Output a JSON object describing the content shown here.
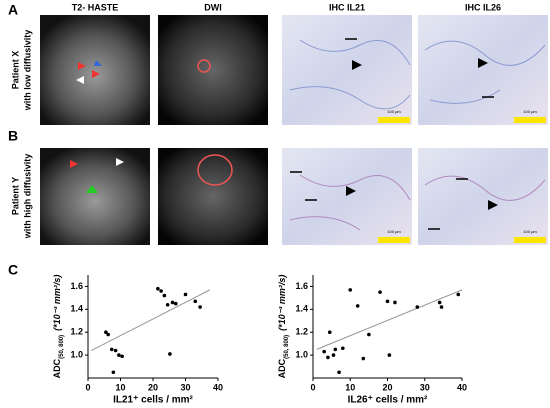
{
  "figure": {
    "panel_labels": [
      "A",
      "B",
      "C"
    ],
    "column_headers": [
      "T2- HASTE",
      "DWI",
      "IHC IL21",
      "IHC IL26"
    ],
    "row_labels": [
      [
        "Patient X",
        "with low diffusivity"
      ],
      [
        "Patient Y",
        "with high diffusivity"
      ]
    ],
    "scale_bar_labels": [
      "100 µm",
      "100 µm",
      "100 µm",
      "100 µm"
    ]
  },
  "chart_data": [
    {
      "type": "scatter",
      "xlabel": "IL21⁺ cells / mm²",
      "ylabel": "ADC",
      "ylabel_sub": "(50, 800)",
      "ylabel_unit": "(*10⁻³ mm²/s)",
      "x": [
        5.5,
        6.2,
        7.3,
        7.8,
        8.5,
        9.5,
        10.5,
        21.5,
        22.5,
        23.5,
        24.5,
        25.2,
        26,
        27,
        30,
        33,
        34.5
      ],
      "values": [
        1.2,
        1.18,
        1.05,
        0.85,
        1.04,
        1.0,
        0.99,
        1.58,
        1.56,
        1.52,
        1.44,
        1.01,
        1.46,
        1.45,
        1.53,
        1.47,
        1.42
      ],
      "color": "#000000",
      "fit": {
        "x": [
          1,
          37.5
        ],
        "values": [
          1.04,
          1.57
        ],
        "color": "#999999"
      },
      "xlim": [
        0,
        40
      ],
      "xticks": [
        0,
        10,
        20,
        30,
        40
      ],
      "ylim": [
        0.8,
        1.7
      ],
      "yticks": [
        {
          "value": 1.0,
          "label": "1.0"
        },
        1.2,
        1.4,
        1.6
      ]
    },
    {
      "type": "scatter",
      "xlabel": "IL26⁺ cells / mm²",
      "ylabel": "ADC",
      "ylabel_sub": "(50, 800)",
      "ylabel_unit": "(*10⁻³ mm²/s)",
      "x": [
        3,
        4,
        4.5,
        5.5,
        6,
        7,
        8,
        10,
        12,
        13.5,
        15,
        18,
        20,
        20.5,
        22,
        28,
        34,
        34.5,
        39
      ],
      "values": [
        1.03,
        0.98,
        1.2,
        1.0,
        1.05,
        0.85,
        1.06,
        1.57,
        1.43,
        0.97,
        1.18,
        1.55,
        1.47,
        1.0,
        1.46,
        1.42,
        1.46,
        1.42,
        1.53
      ],
      "color": "#000000",
      "fit": {
        "x": [
          1,
          40
        ],
        "values": [
          1.05,
          1.57
        ],
        "color": "#999999"
      },
      "xlim": [
        0,
        40
      ],
      "xticks": [
        0,
        10,
        20,
        30,
        40
      ],
      "ylim": [
        0.8,
        1.7
      ],
      "yticks": [
        {
          "value": 1.0,
          "label": "1.0"
        },
        1.2,
        1.4,
        1.6
      ]
    }
  ]
}
